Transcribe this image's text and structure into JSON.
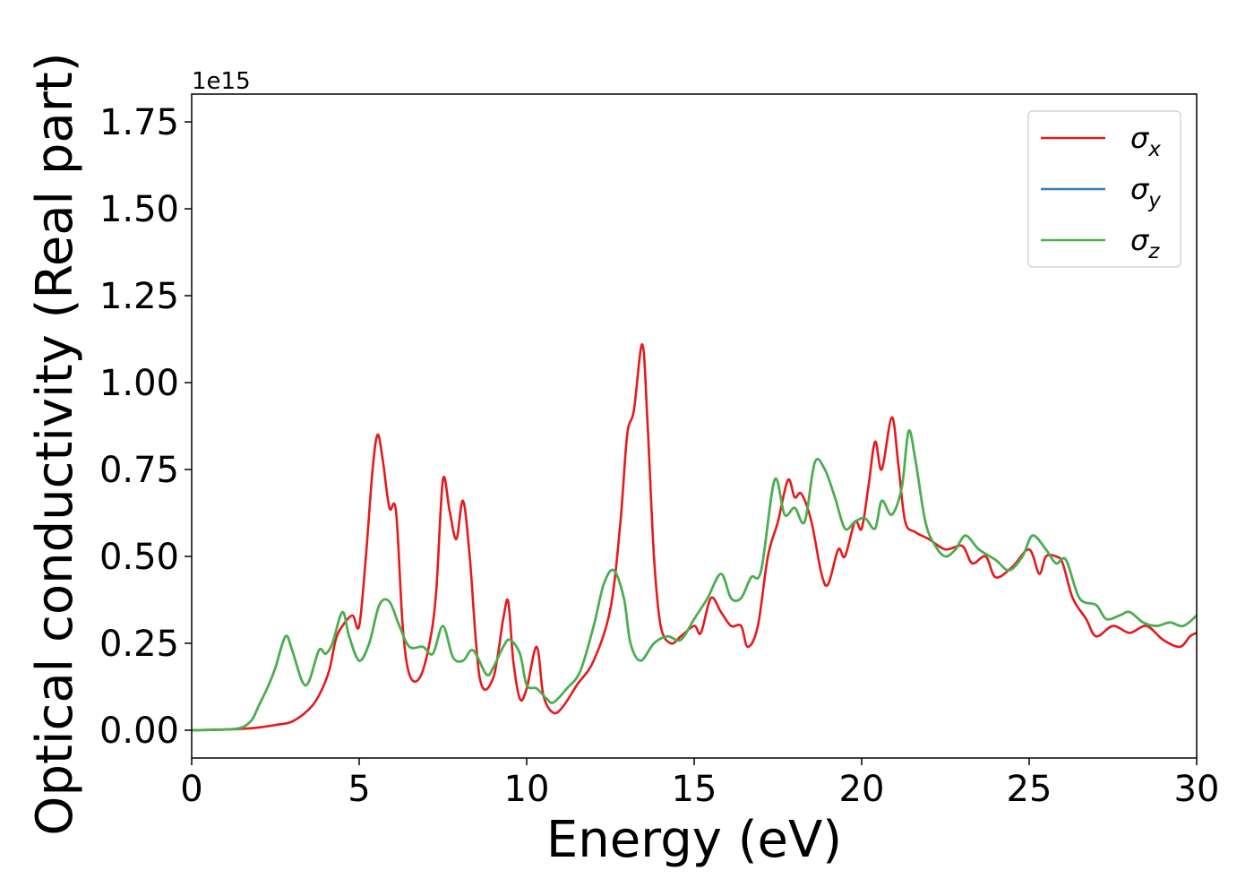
{
  "chart_data": {
    "type": "line",
    "title": "",
    "xlabel": "Energy (eV)",
    "ylabel": "Optical conductivity (Real part)",
    "y_offset_label": "1e15",
    "xlim": [
      0,
      30
    ],
    "ylim": [
      -0.08,
      1.83
    ],
    "x_ticks": [
      0,
      5,
      10,
      15,
      20,
      25,
      30
    ],
    "x_tick_labels": [
      "0",
      "5",
      "10",
      "15",
      "20",
      "25",
      "30"
    ],
    "y_ticks": [
      0.0,
      0.25,
      0.5,
      0.75,
      1.0,
      1.25,
      1.5,
      1.75
    ],
    "y_tick_labels": [
      "0.00",
      "0.25",
      "0.50",
      "0.75",
      "1.00",
      "1.25",
      "1.50",
      "1.75"
    ],
    "grid": false,
    "legend_position": "top-right",
    "series": [
      {
        "name": "σx",
        "name_base": "σ",
        "name_sub": "x",
        "color": "#e41a1c",
        "x": [
          0,
          1,
          1.5,
          2,
          2.5,
          3,
          3.5,
          3.8,
          4.1,
          4.3,
          4.5,
          4.8,
          5.0,
          5.2,
          5.4,
          5.55,
          5.7,
          5.9,
          6.1,
          6.3,
          6.5,
          6.8,
          7.1,
          7.3,
          7.5,
          7.7,
          7.9,
          8.1,
          8.3,
          8.6,
          9.0,
          9.3,
          9.45,
          9.6,
          9.8,
          10.0,
          10.3,
          10.5,
          10.8,
          11.1,
          11.5,
          12.0,
          12.5,
          12.8,
          13.0,
          13.2,
          13.45,
          13.6,
          13.8,
          14.0,
          14.3,
          14.6,
          15.0,
          15.2,
          15.5,
          15.8,
          16.1,
          16.4,
          16.6,
          16.9,
          17.2,
          17.5,
          17.8,
          18.0,
          18.2,
          18.5,
          18.8,
          19.0,
          19.3,
          19.5,
          19.8,
          20.0,
          20.2,
          20.4,
          20.6,
          20.9,
          21.1,
          21.3,
          21.6,
          22.0,
          22.5,
          23.0,
          23.3,
          23.7,
          24.0,
          24.5,
          25.0,
          25.3,
          25.5,
          25.8,
          26.0,
          26.3,
          26.7,
          27.0,
          27.5,
          28.0,
          28.5,
          29.0,
          29.5,
          29.8,
          30.0
        ],
        "y": [
          0.0,
          0.002,
          0.004,
          0.008,
          0.015,
          0.025,
          0.06,
          0.1,
          0.17,
          0.26,
          0.3,
          0.33,
          0.3,
          0.5,
          0.75,
          0.85,
          0.78,
          0.64,
          0.63,
          0.3,
          0.16,
          0.15,
          0.25,
          0.4,
          0.72,
          0.63,
          0.55,
          0.66,
          0.5,
          0.15,
          0.15,
          0.32,
          0.37,
          0.2,
          0.09,
          0.12,
          0.24,
          0.1,
          0.05,
          0.07,
          0.13,
          0.2,
          0.35,
          0.6,
          0.85,
          0.92,
          1.11,
          0.9,
          0.5,
          0.3,
          0.25,
          0.27,
          0.3,
          0.28,
          0.38,
          0.34,
          0.3,
          0.3,
          0.24,
          0.3,
          0.5,
          0.6,
          0.72,
          0.67,
          0.68,
          0.6,
          0.45,
          0.42,
          0.52,
          0.5,
          0.6,
          0.58,
          0.7,
          0.83,
          0.75,
          0.9,
          0.76,
          0.6,
          0.57,
          0.55,
          0.52,
          0.53,
          0.48,
          0.5,
          0.44,
          0.47,
          0.52,
          0.45,
          0.5,
          0.5,
          0.48,
          0.38,
          0.32,
          0.27,
          0.3,
          0.28,
          0.3,
          0.26,
          0.24,
          0.27,
          0.28
        ]
      },
      {
        "name": "σy",
        "name_base": "σ",
        "name_sub": "y",
        "color": "#377eb8",
        "x": [
          0,
          1,
          1.5,
          1.8,
          2.0,
          2.3,
          2.5,
          2.8,
          3.0,
          3.3,
          3.5,
          3.8,
          4.0,
          4.2,
          4.5,
          4.7,
          5.0,
          5.3,
          5.6,
          5.9,
          6.2,
          6.5,
          6.9,
          7.2,
          7.5,
          7.8,
          8.1,
          8.4,
          8.8,
          9.0,
          9.3,
          9.5,
          9.8,
          10.0,
          10.3,
          10.6,
          10.8,
          11.2,
          11.6,
          12.0,
          12.3,
          12.6,
          12.9,
          13.1,
          13.4,
          13.8,
          14.2,
          14.6,
          15.0,
          15.4,
          15.8,
          16.1,
          16.4,
          16.7,
          17.0,
          17.4,
          17.7,
          18.0,
          18.3,
          18.6,
          18.9,
          19.2,
          19.5,
          19.8,
          20.1,
          20.4,
          20.6,
          20.9,
          21.2,
          21.4,
          21.6,
          21.9,
          22.2,
          22.5,
          22.8,
          23.1,
          23.5,
          24.0,
          24.4,
          24.8,
          25.1,
          25.5,
          25.8,
          26.1,
          26.5,
          27.0,
          27.3,
          27.7,
          28.0,
          28.4,
          28.8,
          29.2,
          29.6,
          30.0
        ],
        "y": [
          0.0,
          0.002,
          0.008,
          0.03,
          0.07,
          0.13,
          0.18,
          0.27,
          0.23,
          0.14,
          0.14,
          0.23,
          0.22,
          0.25,
          0.34,
          0.27,
          0.2,
          0.25,
          0.36,
          0.37,
          0.3,
          0.24,
          0.24,
          0.22,
          0.3,
          0.21,
          0.2,
          0.23,
          0.16,
          0.18,
          0.24,
          0.26,
          0.22,
          0.13,
          0.12,
          0.09,
          0.08,
          0.12,
          0.17,
          0.3,
          0.42,
          0.46,
          0.38,
          0.25,
          0.2,
          0.25,
          0.27,
          0.26,
          0.32,
          0.38,
          0.45,
          0.38,
          0.38,
          0.44,
          0.46,
          0.72,
          0.62,
          0.64,
          0.6,
          0.77,
          0.75,
          0.67,
          0.58,
          0.6,
          0.61,
          0.58,
          0.66,
          0.62,
          0.7,
          0.86,
          0.78,
          0.6,
          0.53,
          0.5,
          0.52,
          0.56,
          0.52,
          0.49,
          0.46,
          0.5,
          0.56,
          0.52,
          0.48,
          0.49,
          0.38,
          0.36,
          0.32,
          0.33,
          0.34,
          0.31,
          0.3,
          0.31,
          0.3,
          0.33
        ]
      },
      {
        "name": "σz",
        "name_base": "σ",
        "name_sub": "z",
        "color": "#4daf4a",
        "x": [
          0,
          1,
          1.5,
          1.8,
          2.0,
          2.3,
          2.5,
          2.8,
          3.0,
          3.3,
          3.5,
          3.8,
          4.0,
          4.2,
          4.5,
          4.7,
          5.0,
          5.3,
          5.6,
          5.9,
          6.2,
          6.5,
          6.9,
          7.2,
          7.5,
          7.8,
          8.1,
          8.4,
          8.8,
          9.0,
          9.3,
          9.5,
          9.8,
          10.0,
          10.3,
          10.6,
          10.8,
          11.2,
          11.6,
          12.0,
          12.3,
          12.6,
          12.9,
          13.1,
          13.4,
          13.8,
          14.2,
          14.6,
          15.0,
          15.4,
          15.8,
          16.1,
          16.4,
          16.7,
          17.0,
          17.4,
          17.7,
          18.0,
          18.3,
          18.6,
          18.9,
          19.2,
          19.5,
          19.8,
          20.1,
          20.4,
          20.6,
          20.9,
          21.2,
          21.4,
          21.6,
          21.9,
          22.2,
          22.5,
          22.8,
          23.1,
          23.5,
          24.0,
          24.4,
          24.8,
          25.1,
          25.5,
          25.8,
          26.1,
          26.5,
          27.0,
          27.3,
          27.7,
          28.0,
          28.4,
          28.8,
          29.2,
          29.6,
          30.0
        ],
        "y": [
          0.0,
          0.002,
          0.008,
          0.03,
          0.07,
          0.13,
          0.18,
          0.27,
          0.23,
          0.14,
          0.14,
          0.23,
          0.22,
          0.25,
          0.34,
          0.27,
          0.2,
          0.25,
          0.36,
          0.37,
          0.3,
          0.24,
          0.24,
          0.22,
          0.3,
          0.21,
          0.2,
          0.23,
          0.16,
          0.18,
          0.24,
          0.26,
          0.22,
          0.13,
          0.12,
          0.09,
          0.08,
          0.12,
          0.17,
          0.3,
          0.42,
          0.46,
          0.38,
          0.25,
          0.2,
          0.25,
          0.27,
          0.26,
          0.32,
          0.38,
          0.45,
          0.38,
          0.38,
          0.44,
          0.46,
          0.72,
          0.62,
          0.64,
          0.6,
          0.77,
          0.75,
          0.67,
          0.58,
          0.6,
          0.61,
          0.58,
          0.66,
          0.62,
          0.7,
          0.86,
          0.78,
          0.6,
          0.53,
          0.5,
          0.52,
          0.56,
          0.52,
          0.49,
          0.46,
          0.5,
          0.56,
          0.52,
          0.48,
          0.49,
          0.38,
          0.36,
          0.32,
          0.33,
          0.34,
          0.31,
          0.3,
          0.31,
          0.3,
          0.33
        ]
      }
    ]
  }
}
